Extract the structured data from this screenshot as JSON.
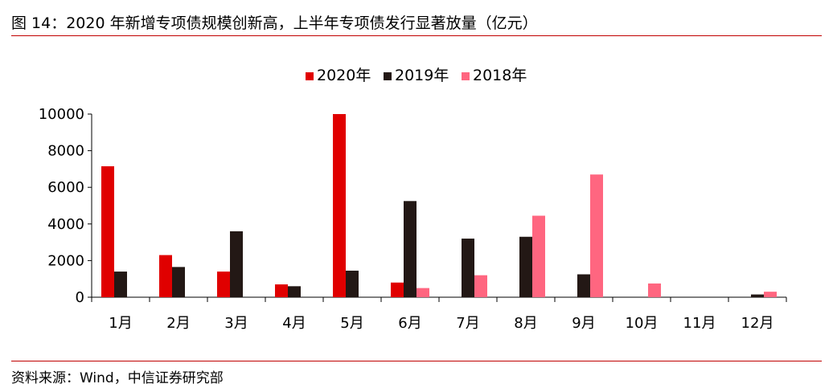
{
  "header": {
    "title": "图 14：2020 年新增专项债规模创新高，上半年专项债发行显著放量（亿元）"
  },
  "footer": {
    "source": "资料来源：Wind，中信证券研究部"
  },
  "colors": {
    "s2020": "#e00000",
    "s2019": "#231815",
    "s2018": "#ff6680",
    "rule": "#c00000"
  },
  "chart_data": {
    "type": "bar",
    "title": "",
    "xlabel": "",
    "ylabel": "",
    "ylim": [
      0,
      10000
    ],
    "yticks": [
      0,
      2000,
      4000,
      6000,
      8000,
      10000
    ],
    "legend_position": "top-center",
    "categories": [
      "1月",
      "2月",
      "3月",
      "4月",
      "5月",
      "6月",
      "7月",
      "8月",
      "9月",
      "10月",
      "11月",
      "12月"
    ],
    "series": [
      {
        "name": "2020年",
        "values": [
          7150,
          2300,
          1400,
          700,
          10000,
          800,
          null,
          null,
          null,
          null,
          null,
          null
        ]
      },
      {
        "name": "2019年",
        "values": [
          1400,
          1650,
          3600,
          600,
          1450,
          5250,
          3200,
          3300,
          1250,
          0,
          0,
          150
        ]
      },
      {
        "name": "2018年",
        "values": [
          null,
          null,
          null,
          null,
          null,
          500,
          1200,
          4450,
          6700,
          750,
          0,
          300
        ]
      }
    ]
  }
}
